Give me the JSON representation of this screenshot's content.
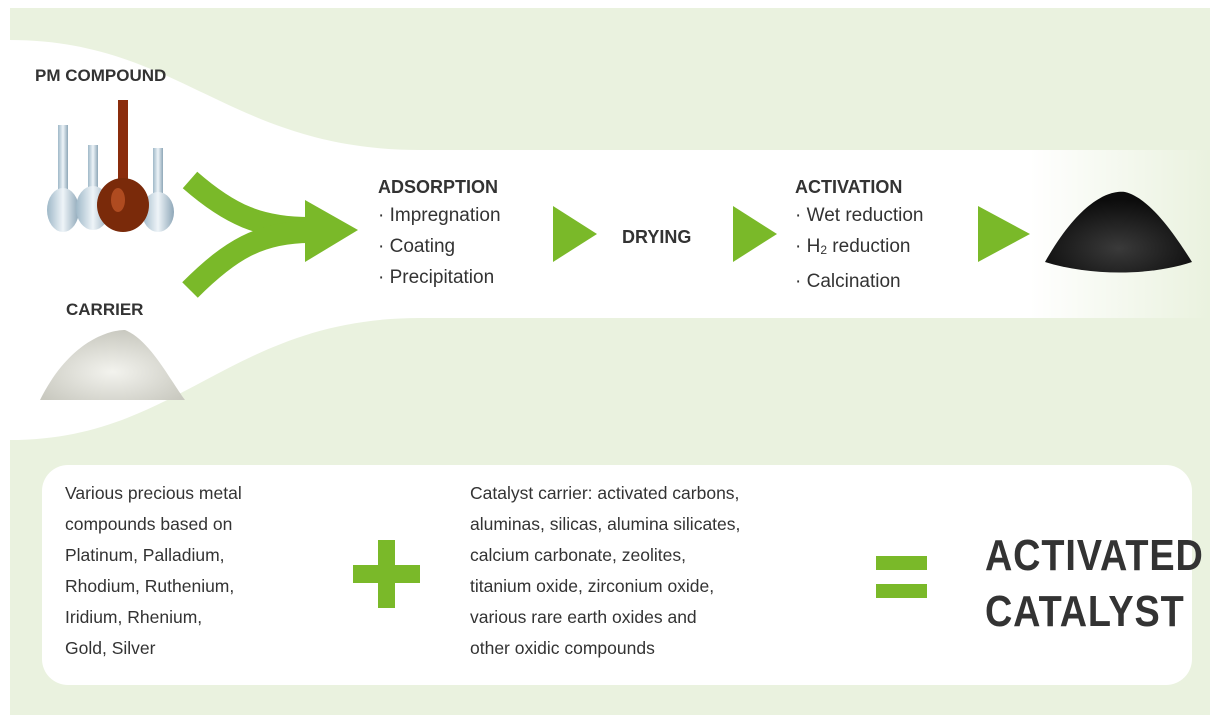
{
  "inputs": {
    "compound": "PM COMPOUND",
    "carrier": "CARRIER"
  },
  "steps": [
    {
      "title": "ADSORPTION",
      "items": [
        {
          "text": "· Impregnation"
        },
        {
          "text": "· Coating"
        },
        {
          "text": "· Precipitation"
        }
      ]
    },
    {
      "title": "DRYING"
    },
    {
      "title": "ACTIVATION",
      "items": [
        {
          "text": "· Wet reduction"
        },
        {
          "text": "· H",
          "sub": "2",
          "after": " reduction"
        },
        {
          "text": "· Calcination"
        }
      ]
    }
  ],
  "summary": {
    "compounds": [
      "Various precious metal",
      "compounds based on",
      "Platinum, Palladium,",
      "Rhodium, Ruthenium,",
      "Iridium, Rhenium,",
      "Gold, Silver"
    ],
    "carriers": [
      "Catalyst carrier: activated carbons,",
      "aluminas, silicas, alumina silicates,",
      "calcium carbonate, zeolites,",
      "titanium oxide, zirconium oxide,",
      "various rare earth oxides and",
      "other oxidic compounds"
    ],
    "result": [
      "ACTIVATED",
      "CATALYST"
    ]
  }
}
